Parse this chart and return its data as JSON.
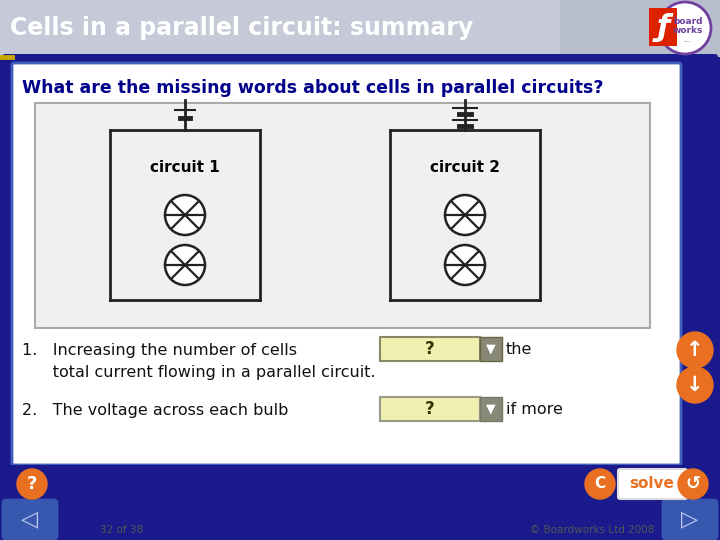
{
  "title": "Cells in a parallel circuit: summary",
  "title_text_color": "#ffffff",
  "title_font_size": 17,
  "outer_bg_color": "#1a1a8c",
  "inner_bg_color": "#ffffff",
  "question_text": "What are the missing words about cells in parallel circuits?",
  "question_color": "#00008B",
  "question_font_size": 12.5,
  "circuit1_label": "circuit 1",
  "circuit2_label": "circuit 2",
  "dropdown_bg": "#f0f0b0",
  "dropdown_text": "?",
  "orange_color": "#e87020",
  "solve_text": "solve",
  "footer_left": "32 of 38",
  "footer_right": "© Boardworks Ltd 2008",
  "header_bg1": "#c8ccd8",
  "header_bg2": "#a8b0c8",
  "yellow_line_color": "#c8a800",
  "dark_navy": "#1a1a8c",
  "circuit_line_color": "#222222",
  "bulb_color": "#222222",
  "text_color": "#111111",
  "line1_pre": "1.   Increasing the number of cells",
  "line1_post": "the",
  "line2": "      total current flowing in a parallel circuit.",
  "line3_pre": "2.   The voltage across each bulb",
  "line3_post": "if more"
}
